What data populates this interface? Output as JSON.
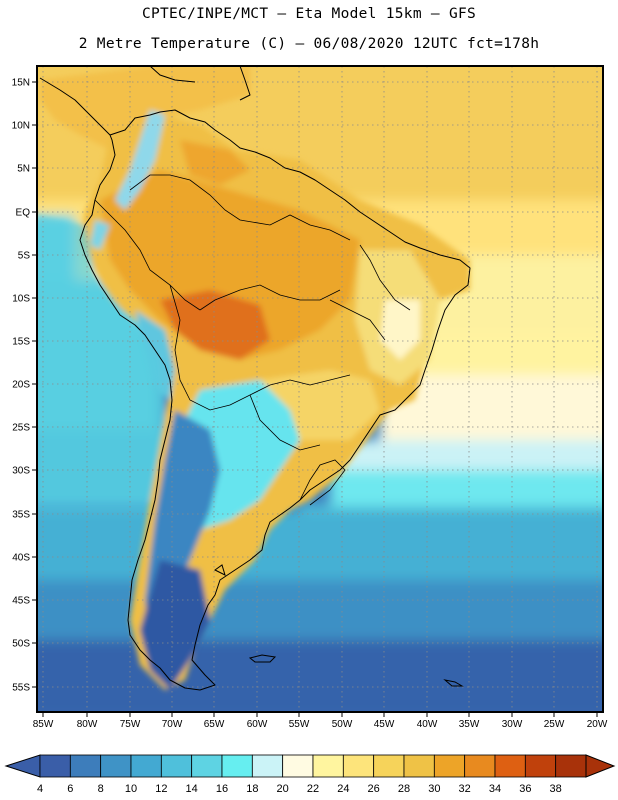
{
  "title_line1": "CPTEC/INPE/MCT –  Eta Model 15km – GFS",
  "title_line2": "2 Metre Temperature (C) – 06/08/2020 12UTC fct=178h",
  "lat_labels": [
    "15N",
    "10N",
    "5N",
    "EQ",
    "5S",
    "10S",
    "15S",
    "20S",
    "25S",
    "30S",
    "35S",
    "40S",
    "45S",
    "50S",
    "55S"
  ],
  "lon_labels": [
    "85W",
    "80W",
    "75W",
    "70W",
    "65W",
    "60W",
    "55W",
    "50W",
    "45W",
    "40W",
    "35W",
    "30W",
    "25W",
    "20W"
  ],
  "colorbar": {
    "values": [
      "4",
      "6",
      "8",
      "10",
      "12",
      "14",
      "16",
      "18",
      "20",
      "22",
      "24",
      "26",
      "28",
      "30",
      "32",
      "34",
      "36",
      "38"
    ],
    "colors": [
      "#3a5ea8",
      "#3d7dbb",
      "#3f93c6",
      "#43a9d2",
      "#4fc0db",
      "#5ed3e3",
      "#66eef0",
      "#cbf3f7",
      "#fffbe2",
      "#fff59f",
      "#fde47b",
      "#f6d35a",
      "#efc246",
      "#eda428",
      "#e88a1f",
      "#de6012",
      "#c0410c",
      "#a8320a"
    ],
    "low_color": "#3a5ea8",
    "high_color": "#a8320a"
  }
}
